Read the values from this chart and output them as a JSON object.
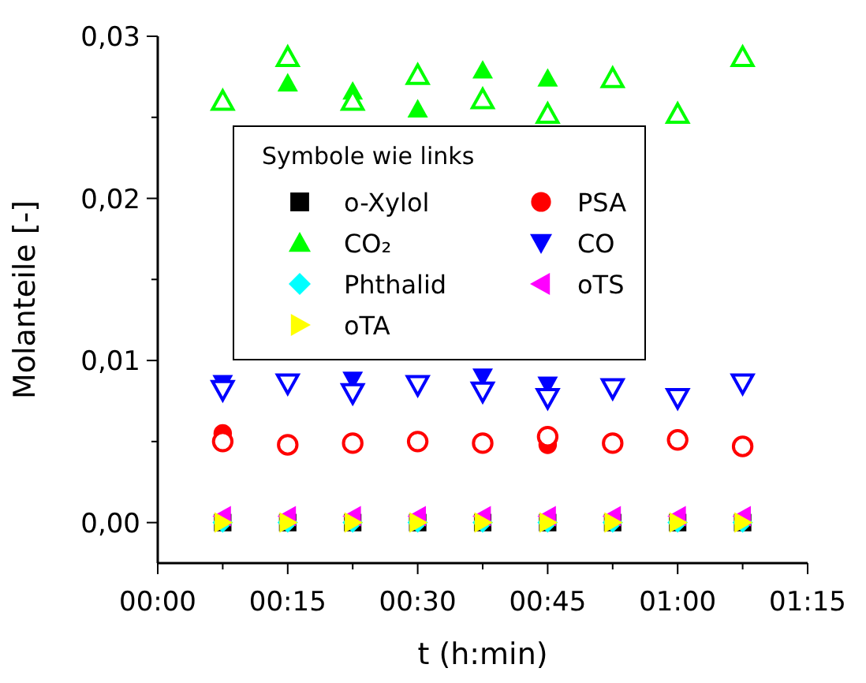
{
  "chart_data": {
    "type": "scatter",
    "xlabel": "t (h:min)",
    "ylabel": "Molanteile [-]",
    "legend_title": "Symbole wie links",
    "legend": "top left",
    "xlim": [
      0,
      1.25
    ],
    "xticks": [
      {
        "value": 0,
        "label": "00:00"
      },
      {
        "value": 0.125,
        "label": null
      },
      {
        "value": 0.25,
        "label": "00:15"
      },
      {
        "value": 0.375,
        "label": null
      },
      {
        "value": 0.5,
        "label": "00:30"
      },
      {
        "value": 0.625,
        "label": null
      },
      {
        "value": 0.75,
        "label": "00:45"
      },
      {
        "value": 0.875,
        "label": null
      },
      {
        "value": 1,
        "label": "01:00"
      },
      {
        "value": 1.125,
        "label": null
      },
      {
        "value": 1.25,
        "label": "01:15"
      }
    ],
    "ylim": [
      -0.0025,
      0.03
    ],
    "yticks": [
      {
        "value": 0,
        "label": "0,00"
      },
      {
        "value": 0.005,
        "label": null
      },
      {
        "value": 0.01,
        "label": "0,01"
      },
      {
        "value": 0.015,
        "label": null
      },
      {
        "value": 0.02,
        "label": "0,02"
      },
      {
        "value": 0.025,
        "label": null
      },
      {
        "value": 0.03,
        "label": "0,03"
      }
    ],
    "grid": false,
    "x": [
      0.125,
      0.25,
      0.375,
      0.5,
      0.625,
      0.75,
      0.875,
      1,
      1.125
    ],
    "series": [
      {
        "name": "o-Xylol",
        "color": "#000000",
        "marker": "square",
        "values": [
          0,
          0,
          0,
          0,
          0,
          0,
          0,
          0,
          0
        ]
      },
      {
        "name": "PSA",
        "color": "#ff0000",
        "marker": "circle",
        "values": [
          0.0055,
          null,
          null,
          null,
          null,
          0.0048,
          null,
          null,
          null
        ]
      },
      {
        "name": "CO₂",
        "color": "#00ff00",
        "marker": "triangle",
        "values": [
          null,
          0.0271,
          0.0266,
          0.0255,
          0.0279,
          0.0274,
          null,
          null,
          null
        ]
      },
      {
        "name": "CO",
        "color": "#0000ff",
        "marker": "triangle-down",
        "values": [
          0.0086,
          null,
          0.0088,
          null,
          0.009,
          0.0085,
          null,
          null,
          null
        ]
      },
      {
        "name": "Phthalid",
        "color": "#00ffff",
        "marker": "diamond",
        "values": [
          0,
          0,
          0,
          0,
          0,
          0,
          0,
          0,
          0
        ]
      },
      {
        "name": "oTS",
        "color": "#ff00ff",
        "marker": "triangle-left",
        "values": [
          0.0004,
          0.0004,
          0.0004,
          0.0004,
          0.0004,
          0.0004,
          0.0004,
          0.0004,
          0.0004
        ]
      },
      {
        "name": "oTA",
        "color": "#ffff00",
        "marker": "triangle-right",
        "values": [
          0,
          0,
          0,
          0,
          0,
          0,
          0,
          0,
          0
        ]
      },
      {
        "color": "#ff0000",
        "marker": "circle",
        "values": [
          0.005,
          0.0048,
          0.0049,
          0.005,
          0.0049,
          0.0053,
          0.0049,
          0.0051,
          0.0047
        ]
      },
      {
        "color": "#00ff00",
        "marker": "triangle",
        "values": [
          0.026,
          0.0287,
          0.026,
          0.0276,
          0.0261,
          0.0252,
          0.0274,
          0.0252,
          0.0287
        ]
      },
      {
        "color": "#0000ff",
        "marker": "triangle-down",
        "values": [
          0.0082,
          0.0086,
          0.008,
          0.0085,
          0.0081,
          0.0077,
          0.0083,
          0.0077,
          0.0086
        ]
      }
    ]
  }
}
